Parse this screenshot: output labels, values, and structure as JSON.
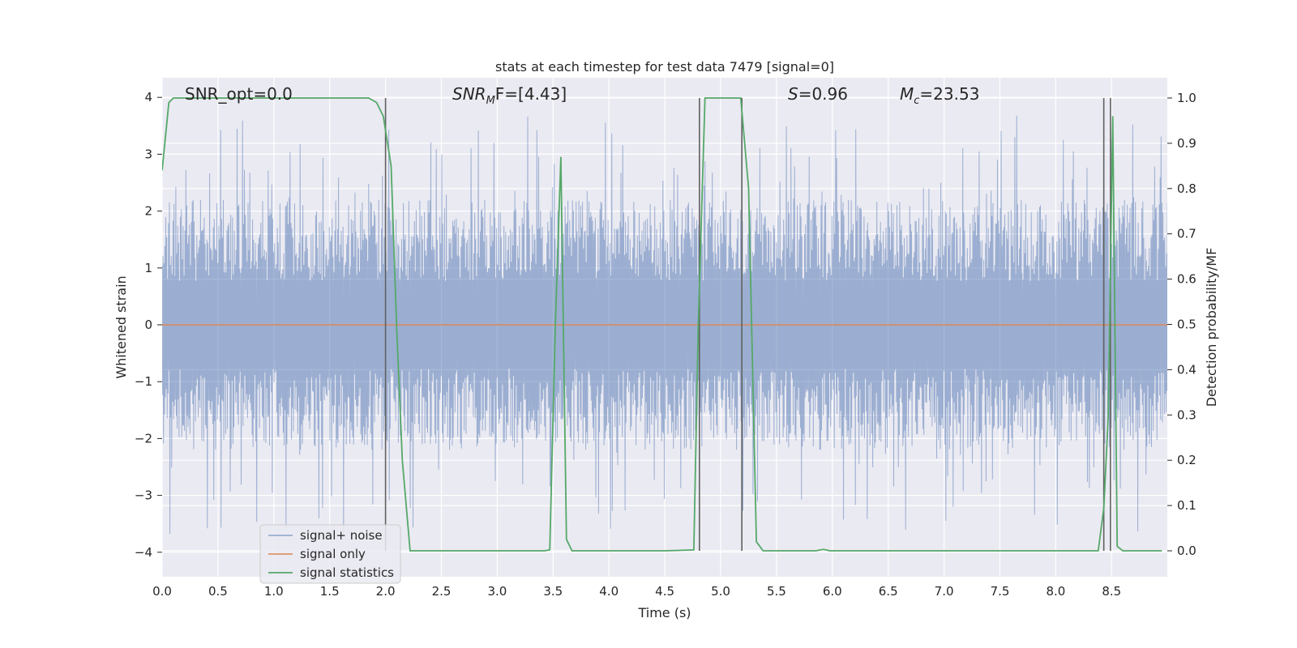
{
  "chart_data": {
    "type": "line",
    "title": "stats at each timestep for test data 7479 [signal=0]",
    "xlabel": "Time (s)",
    "ylabel": "Whitened strain",
    "ylabel_right": "Detection probability/MF",
    "xlim": [
      0.0,
      9.0
    ],
    "ylim": [
      -4.3,
      4.4
    ],
    "ylim_right": [
      -0.05,
      1.03
    ],
    "x_ticks": [
      "0.0",
      "0.5",
      "1.0",
      "1.5",
      "2.0",
      "2.5",
      "3.0",
      "3.5",
      "4.0",
      "4.5",
      "5.0",
      "5.5",
      "6.0",
      "6.5",
      "7.0",
      "7.5",
      "8.0",
      "8.5"
    ],
    "y_ticks": [
      "4",
      "3",
      "2",
      "1",
      "0",
      "−1",
      "−2",
      "−3",
      "−4"
    ],
    "y_ticks_right": [
      "1.0",
      "0.9",
      "0.8",
      "0.7",
      "0.6",
      "0.5",
      "0.4",
      "0.3",
      "0.2",
      "0.1",
      "0.0"
    ],
    "grid": true,
    "legend_position": "lower-left",
    "annotations": {
      "snr_opt": "SNR_opt=0.0",
      "snr_mf_main": "SNR",
      "snr_mf_sub": "M",
      "snr_mf_rest": "F=[4.43]",
      "s_main": "S",
      "s_rest": "=0.96",
      "mc_main": "M",
      "mc_sub": "c",
      "mc_rest": "=23.53"
    },
    "series": [
      {
        "name": "signal+ noise",
        "color": "#4c72b0",
        "style": "dense noise around 0",
        "amplitude_typical": 2.2,
        "amplitude_max": 3.7
      },
      {
        "name": "signal only",
        "color": "#dd8452",
        "x": [
          0.0,
          9.0
        ],
        "y": [
          0.0,
          0.0
        ]
      },
      {
        "name": "signal statistics",
        "color": "#55a868",
        "axis": "right",
        "x": [
          0.0,
          0.06,
          0.1,
          0.5,
          1.0,
          1.5,
          1.85,
          1.92,
          1.98,
          2.05,
          2.1,
          2.15,
          2.22,
          2.5,
          3.0,
          3.42,
          3.47,
          3.52,
          3.57,
          3.62,
          3.67,
          3.72,
          4.0,
          4.5,
          4.76,
          4.8,
          4.86,
          4.92,
          5.0,
          5.18,
          5.25,
          5.32,
          5.38,
          5.5,
          5.85,
          5.92,
          5.98,
          6.5,
          7.5,
          8.38,
          8.43,
          8.47,
          8.51,
          8.55,
          8.6,
          8.66,
          8.8,
          8.95
        ],
        "y": [
          0.84,
          0.99,
          1.0,
          1.0,
          1.0,
          1.0,
          1.0,
          0.99,
          0.96,
          0.85,
          0.49,
          0.2,
          0.0,
          0.0,
          0.0,
          0.0,
          0.002,
          0.5,
          0.87,
          0.025,
          0.0,
          0.0,
          0.0,
          0.0,
          0.002,
          0.5,
          1.0,
          1.0,
          1.0,
          1.0,
          0.8,
          0.02,
          0.0,
          0.0,
          0.0,
          0.003,
          0.0,
          0.0,
          0.0,
          0.0,
          0.095,
          0.3,
          0.96,
          0.01,
          0.0,
          0.0,
          0.0,
          0.0
        ]
      }
    ],
    "vertical_markers_x": [
      2.0,
      4.81,
      5.19,
      8.43,
      8.49
    ],
    "colors": {
      "plot_background": "#eaeaf2",
      "grid": "#ffffff",
      "marker_lines": "#606060"
    }
  }
}
